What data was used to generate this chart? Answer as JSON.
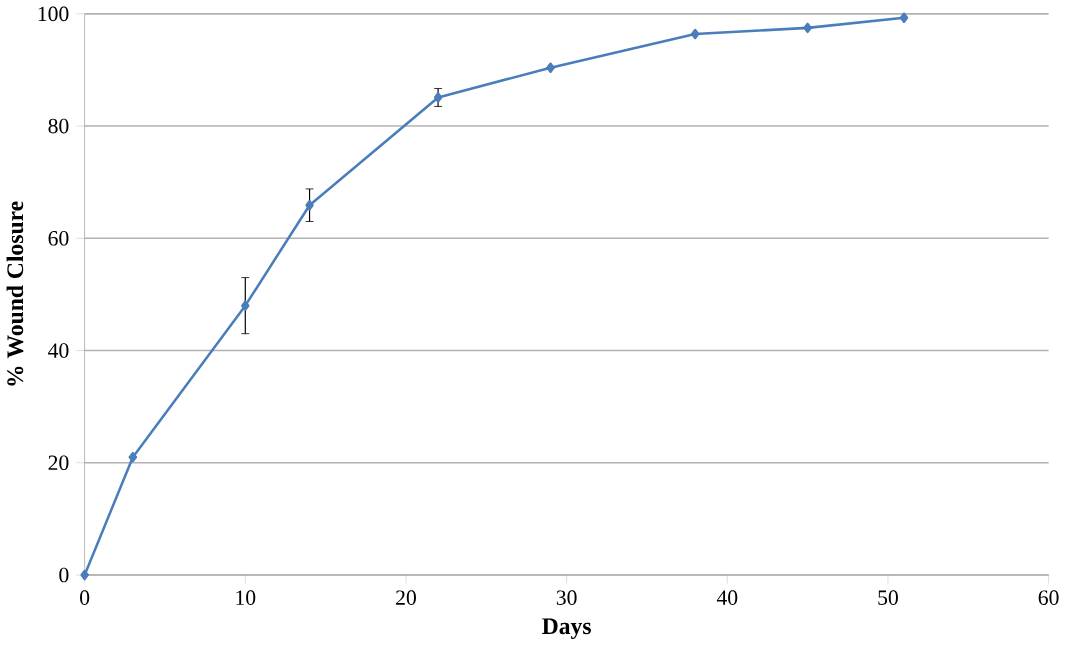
{
  "chart_data": {
    "type": "line",
    "xlabel": "Days",
    "ylabel": "% Wound Closure",
    "x": [
      0,
      3,
      10,
      14,
      22,
      29,
      38,
      45,
      51
    ],
    "values": [
      0,
      21,
      48,
      65.9,
      85.1,
      90.4,
      96.4,
      97.5,
      99.3
    ],
    "errors": [
      null,
      null,
      5,
      2.9,
      1.6,
      null,
      null,
      null,
      null
    ],
    "color": "#4a7ebb",
    "marker": "diamond",
    "line_style": "solid",
    "grid": "y",
    "xlim": [
      0,
      60
    ],
    "xticks": [
      0,
      10,
      20,
      30,
      40,
      50,
      60
    ],
    "ylim": [
      0,
      100
    ],
    "yticks": [
      0,
      20,
      40,
      60,
      80,
      100
    ]
  }
}
